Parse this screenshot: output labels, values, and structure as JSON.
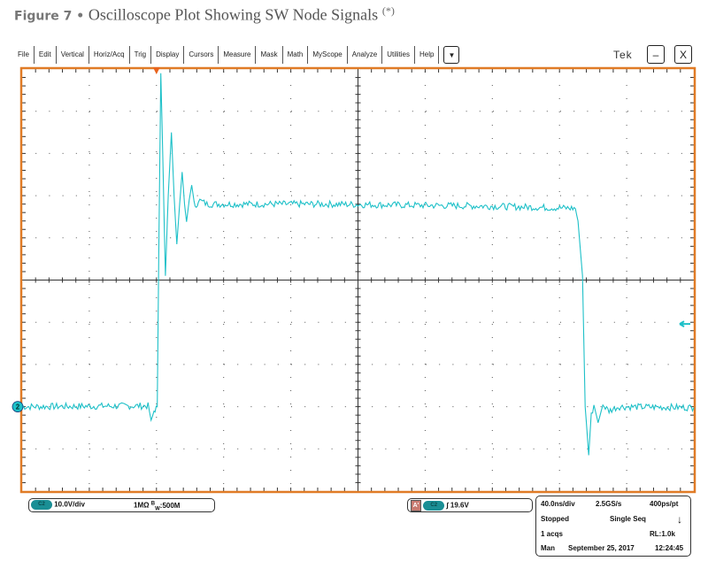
{
  "figure": {
    "label": "Figure 7 •",
    "title": "Oscilloscope Plot Showing SW Node Signals",
    "superscript": "(*)"
  },
  "menu": {
    "items": [
      "File",
      "Edit",
      "Vertical",
      "Horiz/Acq",
      "Trig",
      "Display",
      "Cursors",
      "Measure",
      "Mask",
      "Math",
      "MyScope",
      "Analyze",
      "Utilities",
      "Help"
    ],
    "dropdown_icon": "▼",
    "brand": "Tek",
    "minimize": "–",
    "close": "X"
  },
  "channel_panel": {
    "chip": "C2",
    "scale": "10.0V/div",
    "impedance": "1MΩ",
    "bw_prefix": "B",
    "bw_sub": "W",
    "bandwidth": ":500M"
  },
  "trigger_panel": {
    "badge": "A'",
    "chip": "C2",
    "slope_icon": "∫",
    "level": "19.6V"
  },
  "acq_panel": {
    "timebase": "40.0ns/div",
    "sample_rate": "2.5GS/s",
    "resolution": "400ps/pt",
    "state": "Stopped",
    "mode": "Single Seq",
    "acqs": "1 acqs",
    "record_length": "RL:1.0k",
    "trigger_mode": "Man",
    "date": "September 25, 2017",
    "time": "12:24:45"
  },
  "colors": {
    "trace": "#1ec0c8",
    "frame": "#e07b26",
    "grid": "#333333",
    "trigger_marker": "#e8641e"
  },
  "chart_data": {
    "type": "line",
    "xlabel": "",
    "ylabel": "",
    "xlim": [
      -80,
      320
    ],
    "ylim": [
      -20,
      80
    ],
    "x_unit": "ns",
    "y_unit": "V",
    "grid": true,
    "divisions": [
      10,
      10
    ],
    "channel_marker": "2",
    "series": [
      {
        "points": [
          [
            -80,
            0
          ],
          [
            -5,
            0.2
          ],
          [
            -4.2,
            -1
          ],
          [
            -3.2,
            -3.8
          ],
          [
            -1.5,
            -1
          ],
          [
            0.5,
            0
          ],
          [
            1.5,
            40
          ],
          [
            2.6,
            79
          ],
          [
            4,
            55
          ],
          [
            5.3,
            31
          ],
          [
            7,
            50
          ],
          [
            8.9,
            65
          ],
          [
            10.5,
            50
          ],
          [
            12.1,
            38.5
          ],
          [
            13.8,
            48
          ],
          [
            15.3,
            55.6
          ],
          [
            16.7,
            48
          ],
          [
            17.9,
            43.8
          ],
          [
            19.5,
            49
          ],
          [
            21,
            52.5
          ],
          [
            23,
            46.9
          ],
          [
            25,
            49
          ],
          [
            30,
            48
          ],
          [
            100,
            48
          ],
          [
            200,
            47.5
          ],
          [
            249.5,
            47
          ],
          [
            251,
            44
          ],
          [
            253.7,
            31
          ],
          [
            255.3,
            0
          ],
          [
            257.4,
            -11.5
          ],
          [
            258.9,
            -2.1
          ],
          [
            260.5,
            0.4
          ],
          [
            263,
            -3.8
          ],
          [
            265.8,
            0.4
          ],
          [
            269.5,
            -1
          ],
          [
            275,
            0
          ],
          [
            320,
            -0.2
          ]
        ]
      }
    ]
  }
}
